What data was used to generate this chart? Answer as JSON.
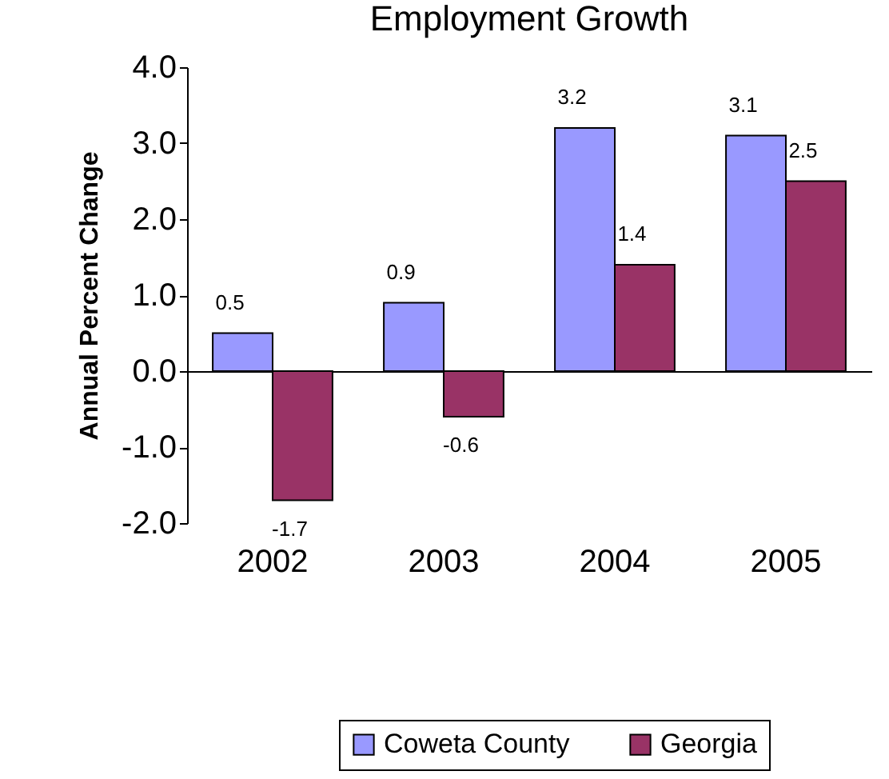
{
  "chart_data": {
    "type": "bar",
    "title": "Employment Growth",
    "ylabel": "Annual Percent Change",
    "categories": [
      "2002",
      "2003",
      "2004",
      "2005"
    ],
    "series": [
      {
        "name": "Coweta County",
        "color": "#9999ff",
        "values": [
          0.5,
          0.9,
          3.2,
          3.1
        ]
      },
      {
        "name": "Georgia",
        "color": "#993366",
        "values": [
          -1.7,
          -0.6,
          1.4,
          2.5
        ]
      }
    ],
    "ylim": [
      -2,
      4
    ],
    "yticks": [
      {
        "value": -2,
        "label": "-2.0"
      },
      {
        "value": -1,
        "label": "-1.0"
      },
      {
        "value": 0,
        "label": "0.0"
      },
      {
        "value": 1,
        "label": "1.0"
      },
      {
        "value": 2,
        "label": "2.0"
      },
      {
        "value": 3,
        "label": "3.0"
      },
      {
        "value": 4,
        "label": "4.0"
      }
    ],
    "data_labels": true,
    "legend": "bottom"
  }
}
